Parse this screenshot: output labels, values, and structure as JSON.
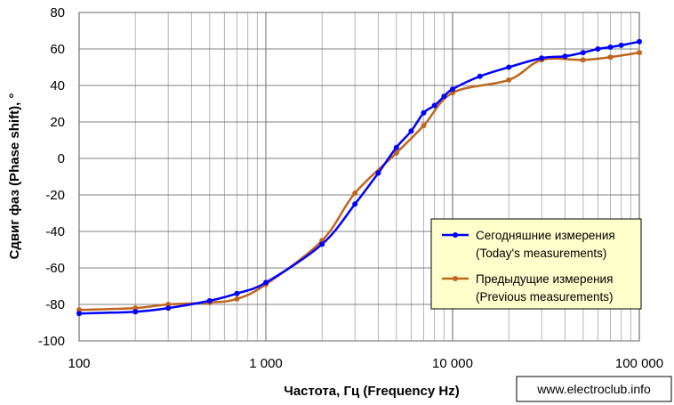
{
  "chart_data": {
    "type": "line",
    "xlabel": "Частота, Гц (Frequency Hz)",
    "ylabel": "Сдвиг фаз (Phase shift), °",
    "xscale": "log",
    "xlim": [
      100,
      100000
    ],
    "ylim": [
      -100,
      80
    ],
    "grid": true,
    "legend_position": "right",
    "x_ticks": [
      100,
      1000,
      10000,
      100000
    ],
    "x_tick_labels": [
      "100",
      "1 000",
      "10 000",
      "100 000"
    ],
    "y_ticks": [
      -100,
      -80,
      -60,
      -40,
      -20,
      0,
      20,
      40,
      60,
      80
    ],
    "y_tick_labels": [
      "-100",
      "-80",
      "-60",
      "-40",
      "-20",
      "0",
      "20",
      "40",
      "60",
      "80"
    ],
    "series": [
      {
        "name_line1": "Сегодняшние измерения",
        "name_line2": "(Today's measurements)",
        "color": "#0000ff",
        "x": [
          100,
          200,
          300,
          500,
          700,
          1000,
          2000,
          3000,
          4000,
          5000,
          6000,
          7000,
          8000,
          9000,
          10000,
          14000,
          20000,
          30000,
          40000,
          50000,
          60000,
          70000,
          80000,
          100000
        ],
        "y": [
          -85,
          -84,
          -82,
          -78,
          -74,
          -68,
          -47,
          -25,
          -8,
          6,
          15,
          25,
          29,
          34,
          38,
          45,
          50,
          55,
          56,
          58,
          60,
          61,
          62,
          64
        ]
      },
      {
        "name_line1": "Предыдущие измерения",
        "name_line2": "(Previous measurements)",
        "color": "#c0651d",
        "x": [
          100,
          200,
          300,
          500,
          700,
          1000,
          2000,
          3000,
          5000,
          7000,
          10000,
          20000,
          30000,
          50000,
          70000,
          100000
        ],
        "y": [
          -83,
          -82,
          -80,
          -79,
          -77,
          -69,
          -45,
          -19,
          3,
          18,
          36,
          43,
          54,
          54,
          55.5,
          58
        ]
      }
    ]
  },
  "watermark": "www.electroclub.info"
}
